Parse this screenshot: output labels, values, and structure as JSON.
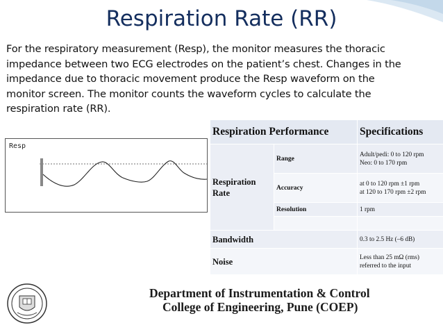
{
  "slide": {
    "title": "Respiration Rate (RR)",
    "body_lines": [
      "For the respiratory measurement (Resp), the monitor measures the thoracic",
      "impedance between two ECG electrodes on the  patient’s chest. Changes in the",
      "impedance due to thoracic movement produce the Resp waveform on the",
      "monitor screen. The monitor counts the waveform cycles to calculate the",
      "respiration rate (RR)."
    ]
  },
  "figure": {
    "label": "Resp"
  },
  "table": {
    "header_left": "Respiration Performance",
    "header_right": "Specifications",
    "parameter_respiration_rate": "Respiration Rate",
    "rows": [
      {
        "sub": "Range",
        "value_lines": [
          "Adult/pedi: 0 to 120 rpm",
          "Neo: 0 to 170 rpm"
        ]
      },
      {
        "sub": "Accuracy",
        "value_lines": [
          "at 0 to 120 rpm ±1 rpm",
          "at 120 to 170 rpm ±2 rpm"
        ]
      },
      {
        "sub": "Resolution",
        "value_lines": [
          "1 rpm"
        ]
      },
      {
        "sub": "",
        "value_lines": [
          ""
        ]
      }
    ],
    "bandwidth_label": "Bandwidth",
    "bandwidth_value": "0.3 to 2.5 Hz (–6 dB)",
    "noise_label": "Noise",
    "noise_value_lines": [
      "Less than 25 mΩ (rms)",
      "referred to the input"
    ]
  },
  "footer": {
    "department": "Department of Instrumentation & Control",
    "college": "College of Engineering, Pune (COEP)"
  },
  "colors": {
    "title": "#142e5e",
    "table_header_bg": "#e4e9f2",
    "table_row_bg": "#ebeef5",
    "accent_corner": "#bcd3e6"
  }
}
